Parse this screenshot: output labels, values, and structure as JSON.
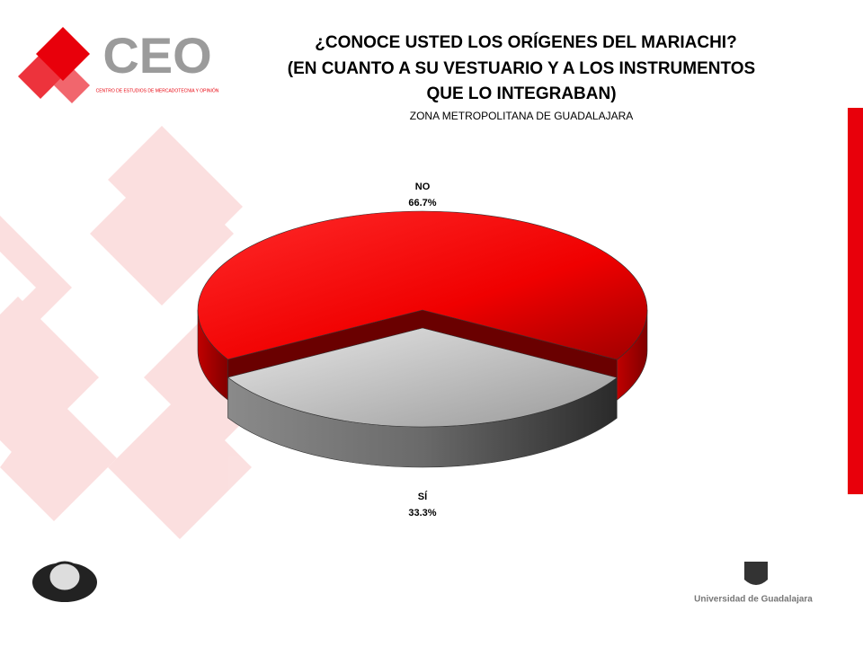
{
  "chart_data": {
    "type": "pie",
    "title": [
      "¿CONOCE USTED LOS ORÍGENES DEL MARIACHI?",
      "(EN CUANTO A SU VESTUARIO Y A LOS INSTRUMENTOS",
      "QUE LO INTEGRABAN)"
    ],
    "subtitle": "ZONA  METROPOLITANA DE GUADALAJARA",
    "categories": [
      "NO",
      "SÍ"
    ],
    "values": [
      66.7,
      33.3
    ],
    "value_labels": [
      "66.7%",
      "33.3%"
    ],
    "colors": [
      "#e8000b",
      "#c4c4c4"
    ]
  },
  "branding": {
    "ceo": "CEO",
    "ceo_tagline": "CENTRO DE ESTUDIOS DE MERCADOTECNIA Y OPINIÓN",
    "university": "Universidad de Guadalajara"
  }
}
